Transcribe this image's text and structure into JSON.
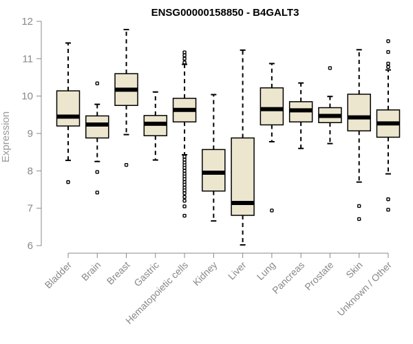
{
  "chart_data": {
    "type": "boxplot",
    "title": "ENSG00000158850 - B4GALT3",
    "ylabel": "Expression",
    "xlabel": "",
    "ylim": [
      6,
      12
    ],
    "yticks": [
      6,
      7,
      8,
      9,
      10,
      11,
      12
    ],
    "colors": {
      "box_fill": "#ede6cf",
      "stroke": "#000000",
      "axis": "#888888"
    },
    "categories": [
      "Bladder",
      "Brain",
      "Breast",
      "Gastric",
      "Hematopoietic cells",
      "Kidney",
      "Liver",
      "Lung",
      "Pancreas",
      "Prostate",
      "Skin",
      "Unknown / Other"
    ],
    "boxes": [
      {
        "category": "Bladder",
        "whisker_low": 8.28,
        "q1": 9.2,
        "median": 9.45,
        "q3": 10.14,
        "whisker_high": 11.42,
        "outliers": [
          7.7
        ]
      },
      {
        "category": "Brain",
        "whisker_low": 8.25,
        "q1": 8.88,
        "median": 9.24,
        "q3": 9.47,
        "whisker_high": 9.78,
        "outliers": [
          10.34,
          7.97,
          7.42
        ]
      },
      {
        "category": "Breast",
        "whisker_low": 8.97,
        "q1": 9.75,
        "median": 10.17,
        "q3": 10.6,
        "whisker_high": 11.78,
        "outliers": [
          8.16
        ]
      },
      {
        "category": "Gastric",
        "whisker_low": 8.29,
        "q1": 8.94,
        "median": 9.26,
        "q3": 9.48,
        "whisker_high": 10.11,
        "outliers": []
      },
      {
        "category": "Hematopoietic cells",
        "whisker_low": 8.43,
        "q1": 9.31,
        "median": 9.63,
        "q3": 9.94,
        "whisker_high": 10.85,
        "outliers": [
          11.17,
          11.09,
          11.0,
          10.9,
          8.38,
          8.3,
          8.22,
          8.15,
          8.08,
          8.0,
          7.92,
          7.85,
          7.78,
          7.7,
          7.63,
          7.55,
          7.48,
          7.4,
          7.3,
          7.2,
          7.05,
          6.8
        ]
      },
      {
        "category": "Kidney",
        "whisker_low": 6.66,
        "q1": 7.46,
        "median": 7.95,
        "q3": 8.57,
        "whisker_high": 10.04,
        "outliers": []
      },
      {
        "category": "Liver",
        "whisker_low": 6.02,
        "q1": 6.81,
        "median": 7.14,
        "q3": 8.88,
        "whisker_high": 11.23,
        "outliers": []
      },
      {
        "category": "Lung",
        "whisker_low": 8.78,
        "q1": 9.23,
        "median": 9.65,
        "q3": 10.22,
        "whisker_high": 10.87,
        "outliers": [
          6.94
        ]
      },
      {
        "category": "Pancreas",
        "whisker_low": 8.6,
        "q1": 9.31,
        "median": 9.62,
        "q3": 9.85,
        "whisker_high": 10.35,
        "outliers": []
      },
      {
        "category": "Prostate",
        "whisker_low": 8.73,
        "q1": 9.29,
        "median": 9.47,
        "q3": 9.69,
        "whisker_high": 9.99,
        "outliers": [
          10.75
        ]
      },
      {
        "category": "Skin",
        "whisker_low": 7.7,
        "q1": 9.07,
        "median": 9.43,
        "q3": 10.05,
        "whisker_high": 11.24,
        "outliers": [
          7.06,
          6.71
        ]
      },
      {
        "category": "Unknown / Other",
        "whisker_low": 7.92,
        "q1": 8.9,
        "median": 9.27,
        "q3": 9.63,
        "whisker_high": 10.7,
        "outliers": [
          11.47,
          11.18,
          10.87,
          10.78,
          7.24,
          6.96
        ]
      }
    ]
  }
}
